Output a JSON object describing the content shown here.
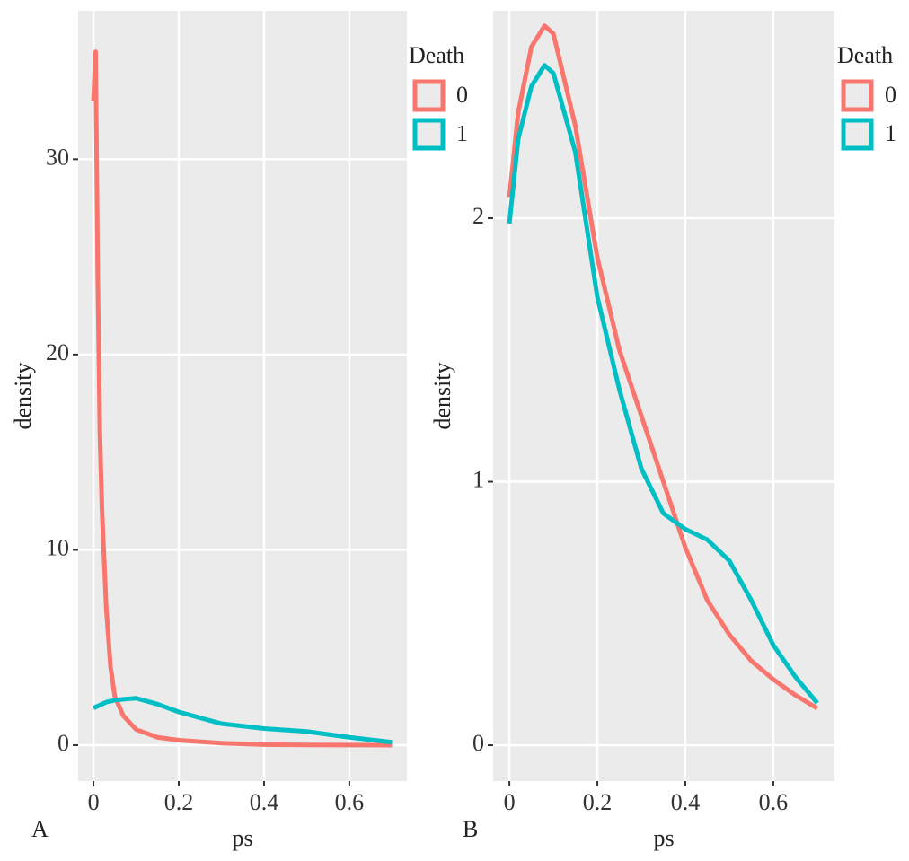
{
  "chart_data": [
    {
      "type": "line",
      "label": "A",
      "xlabel": "ps",
      "ylabel": "density",
      "legend_title": "Death",
      "x": [
        0,
        0.005,
        0.01,
        0.015,
        0.02,
        0.03,
        0.04,
        0.05,
        0.07,
        0.1,
        0.15,
        0.2,
        0.3,
        0.4,
        0.5,
        0.6,
        0.7
      ],
      "series": [
        {
          "name": "0",
          "color": "#f8766d",
          "values": [
            33,
            35.5,
            24,
            16,
            12,
            7,
            4,
            2.5,
            1.5,
            0.8,
            0.4,
            0.25,
            0.1,
            0.03,
            0.01,
            0.005,
            0
          ]
        },
        {
          "name": "1",
          "color": "#00bfc4",
          "values": [
            1.9,
            1.95,
            2.0,
            2.05,
            2.1,
            2.2,
            2.25,
            2.3,
            2.35,
            2.4,
            2.1,
            1.7,
            1.1,
            0.85,
            0.7,
            0.4,
            0.15
          ]
        }
      ],
      "xlim": [
        -0.036,
        0.735
      ],
      "ylim": [
        -1.84,
        37.6
      ],
      "xticks": [
        0,
        0.2,
        0.4,
        0.6
      ],
      "yticks": [
        0,
        10,
        20,
        30
      ],
      "grid": true
    },
    {
      "type": "line",
      "label": "B",
      "xlabel": "ps",
      "ylabel": "density",
      "legend_title": "Death",
      "x": [
        0,
        0.02,
        0.05,
        0.08,
        0.1,
        0.15,
        0.2,
        0.25,
        0.3,
        0.35,
        0.4,
        0.45,
        0.5,
        0.55,
        0.6,
        0.65,
        0.7
      ],
      "series": [
        {
          "name": "0",
          "color": "#f8766d",
          "values": [
            2.08,
            2.4,
            2.65,
            2.73,
            2.7,
            2.35,
            1.85,
            1.5,
            1.25,
            1.0,
            0.75,
            0.55,
            0.42,
            0.32,
            0.25,
            0.19,
            0.14
          ]
        },
        {
          "name": "1",
          "color": "#00bfc4",
          "values": [
            1.98,
            2.3,
            2.5,
            2.58,
            2.55,
            2.25,
            1.7,
            1.35,
            1.05,
            0.88,
            0.82,
            0.78,
            0.7,
            0.55,
            0.38,
            0.26,
            0.16
          ]
        }
      ],
      "xlim": [
        -0.037,
        0.739
      ],
      "ylim": [
        -0.136,
        2.787
      ],
      "xticks": [
        0,
        0.2,
        0.4,
        0.6
      ],
      "yticks": [
        0,
        1,
        2
      ],
      "grid": true
    }
  ]
}
